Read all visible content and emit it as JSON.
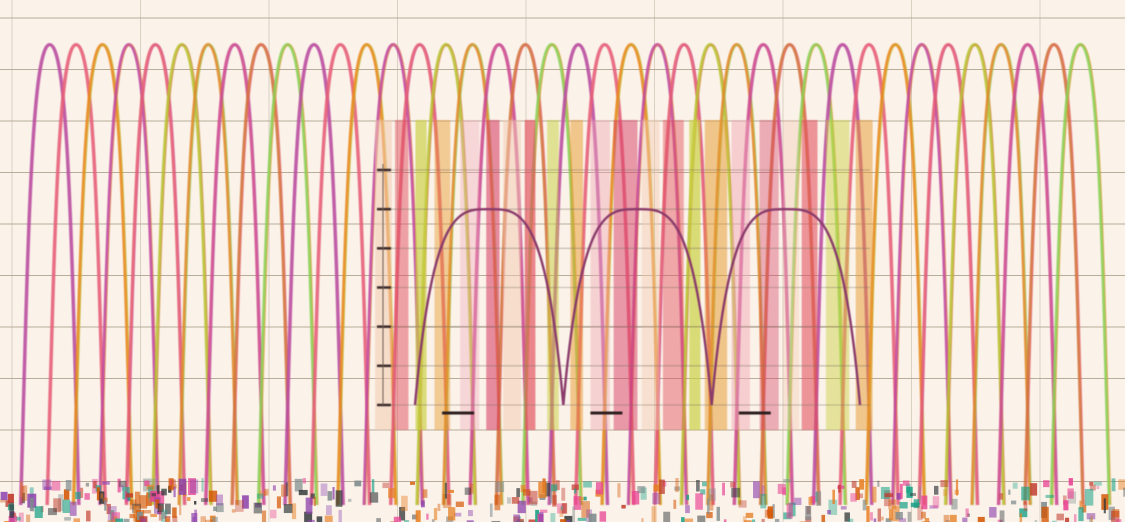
{
  "chart_data": [
    {
      "type": "line",
      "title": "",
      "xlabel": "",
      "ylabel": "",
      "grid": true,
      "legend": "none",
      "x_range": [
        0,
        42
      ],
      "y_range": [
        0,
        1
      ],
      "peak_count": 40,
      "peak_center_start": 1.5,
      "peak_center_step": 1.0,
      "peak_halfwidth": 1.1,
      "peak_height": 0.93,
      "series_colors": [
        "#b94fa1",
        "#e7607b",
        "#e88a1f",
        "#c24aa0",
        "#e45d74",
        "#b9c233",
        "#e08a2a",
        "#cf4d8f",
        "#d3733d",
        "#8ccf57"
      ]
    },
    {
      "type": "line",
      "title": "",
      "xlabel": "",
      "ylabel": "",
      "grid": true,
      "legend": "none",
      "y_ticks": [
        0,
        1,
        2,
        3,
        4,
        5,
        6
      ],
      "y_range": [
        0,
        6
      ],
      "x_range": [
        0,
        3
      ],
      "series": [
        {
          "name": "",
          "peaks": [
            {
              "center": 0.5,
              "height": 5
            },
            {
              "center": 1.5,
              "height": 5
            },
            {
              "center": 2.5,
              "height": 5
            }
          ]
        }
      ],
      "markers": [
        0.25,
        1.25,
        2.25
      ],
      "line_color": "#8a3b6b",
      "band_colors": [
        "#f2c9b0",
        "#e2525f",
        "#c8cf3f",
        "#e6992d",
        "#f0a7b6",
        "#d73f66"
      ]
    }
  ]
}
